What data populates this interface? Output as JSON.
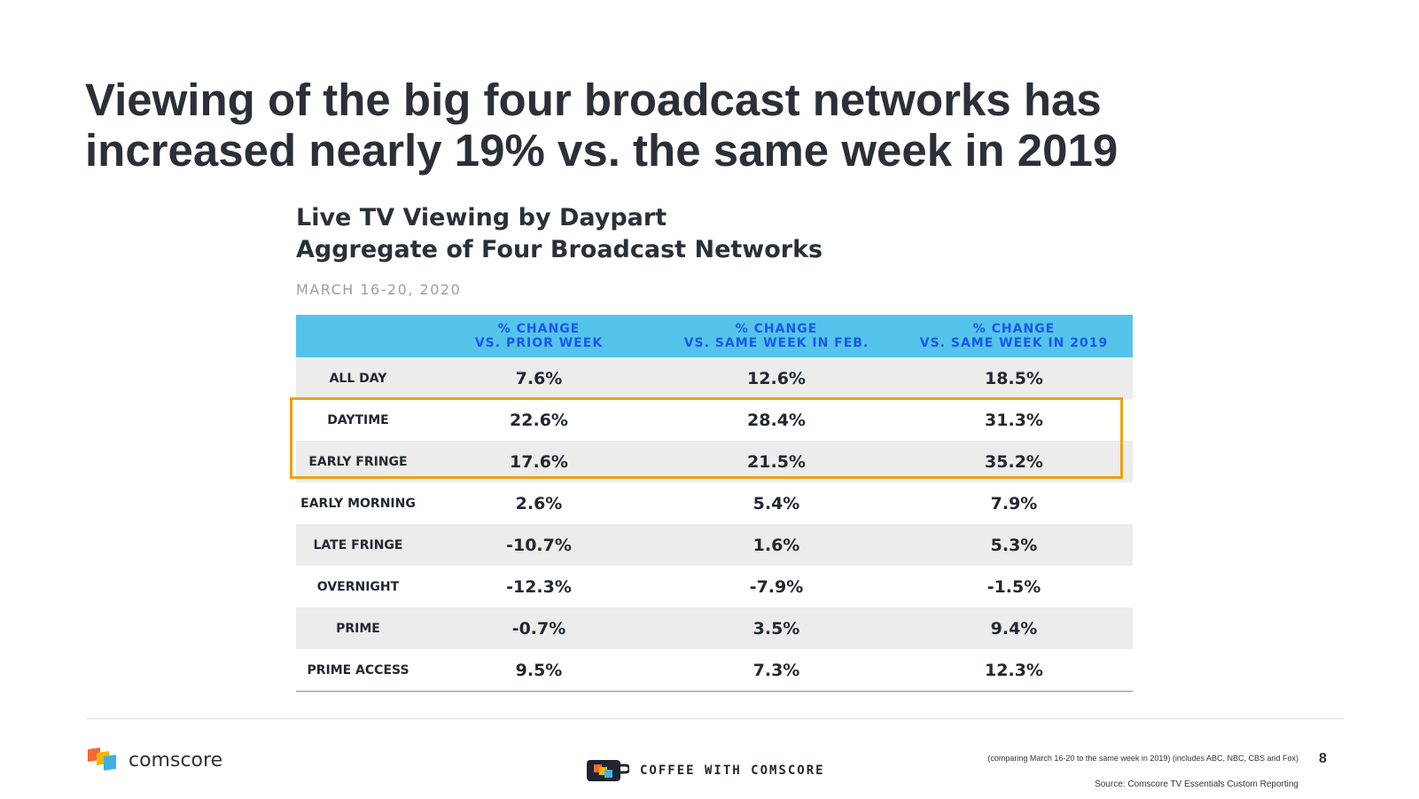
{
  "slide": {
    "headline": "Viewing of the big four broadcast networks has increased nearly 19% vs. the same week in 2019"
  },
  "chart": {
    "title": "Live TV Viewing by Daypart",
    "subtitle": "Aggregate of Four Broadcast Networks",
    "date": "MARCH 16-20, 2020",
    "columns": [
      {
        "line1": "% CHANGE",
        "line2": "VS. PRIOR WEEK"
      },
      {
        "line1": "% CHANGE",
        "line2": "VS. SAME WEEK IN FEB."
      },
      {
        "line1": "% CHANGE",
        "line2": "VS. SAME WEEK IN 2019"
      }
    ],
    "rows": [
      {
        "label": "ALL DAY",
        "values": [
          "7.6%",
          "12.6%",
          "18.5%"
        ]
      },
      {
        "label": "DAYTIME",
        "values": [
          "22.6%",
          "28.4%",
          "31.3%"
        ]
      },
      {
        "label": "EARLY FRINGE",
        "values": [
          "17.6%",
          "21.5%",
          "35.2%"
        ]
      },
      {
        "label": "EARLY MORNING",
        "values": [
          "2.6%",
          "5.4%",
          "7.9%"
        ]
      },
      {
        "label": "LATE FRINGE",
        "values": [
          "-10.7%",
          "1.6%",
          "5.3%"
        ]
      },
      {
        "label": "OVERNIGHT",
        "values": [
          "-12.3%",
          "-7.9%",
          "-1.5%"
        ]
      },
      {
        "label": "PRIME",
        "values": [
          "-0.7%",
          "3.5%",
          "9.4%"
        ]
      },
      {
        "label": "PRIME ACCESS",
        "values": [
          "9.5%",
          "7.3%",
          "12.3%"
        ]
      }
    ]
  },
  "chart_data": {
    "type": "table",
    "title": "Live TV Viewing by Daypart",
    "subtitle": "Aggregate of Four Broadcast Networks",
    "columns": [
      "% CHANGE VS. PRIOR WEEK",
      "% CHANGE VS. SAME WEEK IN FEB.",
      "% CHANGE VS. SAME WEEK IN 2019"
    ],
    "categories": [
      "ALL DAY",
      "DAYTIME",
      "EARLY FRINGE",
      "EARLY MORNING",
      "LATE FRINGE",
      "OVERNIGHT",
      "PRIME",
      "PRIME ACCESS"
    ],
    "series": [
      {
        "name": "% CHANGE VS. PRIOR WEEK",
        "values": [
          7.6,
          22.6,
          17.6,
          2.6,
          -10.7,
          -12.3,
          -0.7,
          9.5
        ]
      },
      {
        "name": "% CHANGE VS. SAME WEEK IN FEB.",
        "values": [
          12.6,
          28.4,
          21.5,
          5.4,
          1.6,
          -7.9,
          3.5,
          7.3
        ]
      },
      {
        "name": "% CHANGE VS. SAME WEEK IN 2019",
        "values": [
          18.5,
          31.3,
          35.2,
          7.9,
          5.3,
          -1.5,
          9.4,
          12.3
        ]
      }
    ],
    "highlighted_rows": [
      "DAYTIME",
      "EARLY FRINGE"
    ]
  },
  "colors": {
    "header_bg": "#55c4ea",
    "header_text": "#1a56f0",
    "highlight_border": "#f0a010",
    "shaded_row": "#ececec"
  },
  "footer": {
    "brand": "comscore",
    "coffee": "COFFEE WITH COMSCORE",
    "footnote": "(comparing March 16-20 to the same week  in 2019)  (includes  ABC, NBC, CBS and  Fox)",
    "page_number": "8",
    "source": "Source:  Comscore TV Essentials Custom Reporting"
  }
}
